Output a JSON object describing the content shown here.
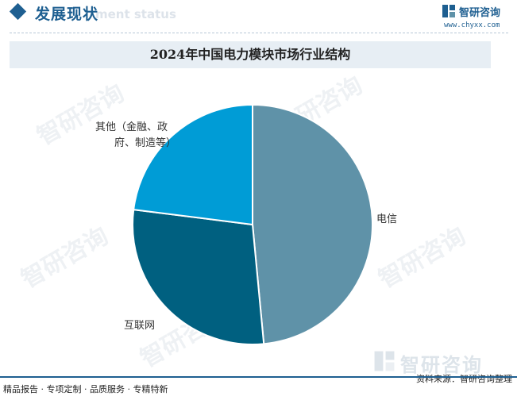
{
  "header": {
    "section_title": "发展现状",
    "section_subtitle": "ment status",
    "brand_name": "智研咨询",
    "brand_url": "www.chyxx.com"
  },
  "watermark_text": "智研咨询",
  "chart_data": {
    "type": "pie",
    "title": "2024年中国电力模块市场行业结构",
    "slices": [
      {
        "name": "电信",
        "value": 48.5,
        "color": "#5f92a8"
      },
      {
        "name": "互联网",
        "value": 28.5,
        "color": "#006080"
      },
      {
        "name": "其他（金融、政府、制造等）",
        "value": 23.0,
        "color": "#009cd6"
      }
    ],
    "labels_display": {
      "dianxin": "电信",
      "hulianwang": "互联网",
      "qita_line1": "其他（金融、政",
      "qita_line2": "府、制造等）"
    },
    "legend": "none"
  },
  "footer": {
    "left": "精品报告 · 专项定制 · 品质服务 · 专精特新",
    "source": "资料来源：智研咨询整理"
  }
}
